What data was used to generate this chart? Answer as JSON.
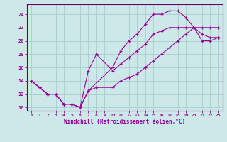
{
  "xlabel": "Windchill (Refroidissement éolien,°C)",
  "bg_color": "#cce8e8",
  "grid_color": "#aacccc",
  "line_color": "#990099",
  "spine_color": "#660066",
  "xlim": [
    -0.5,
    23.5
  ],
  "ylim": [
    9.5,
    25.5
  ],
  "xticks": [
    0,
    1,
    2,
    3,
    4,
    5,
    6,
    7,
    8,
    9,
    10,
    11,
    12,
    13,
    14,
    15,
    16,
    17,
    18,
    19,
    20,
    21,
    22,
    23
  ],
  "yticks": [
    10,
    12,
    14,
    16,
    18,
    20,
    22,
    24
  ],
  "series": [
    {
      "x": [
        0,
        1,
        2,
        3,
        4,
        5,
        6,
        7,
        10,
        11,
        12,
        13,
        14,
        15,
        16,
        17,
        18,
        19,
        20,
        21,
        22,
        23
      ],
      "y": [
        14,
        13,
        12,
        12,
        10.5,
        10.5,
        10,
        12.5,
        16,
        18.5,
        20,
        21,
        22.5,
        24,
        24,
        24.5,
        24.5,
        23.5,
        22,
        20,
        20,
        20.5
      ]
    },
    {
      "x": [
        0,
        1,
        2,
        3,
        4,
        5,
        6,
        7,
        8,
        10,
        11,
        12,
        13,
        14,
        15,
        16,
        17,
        18,
        19,
        20,
        21,
        22,
        23
      ],
      "y": [
        14,
        13,
        12,
        12,
        10.5,
        10.5,
        10,
        15.5,
        18,
        15.5,
        16.5,
        17.5,
        18.5,
        19.5,
        21,
        21.5,
        22,
        22,
        22,
        22,
        21,
        20.5,
        20.5
      ]
    },
    {
      "x": [
        0,
        1,
        2,
        3,
        4,
        5,
        6,
        7,
        8,
        10,
        11,
        12,
        13,
        14,
        15,
        16,
        17,
        18,
        19,
        20,
        21,
        22,
        23
      ],
      "y": [
        14,
        13,
        12,
        12,
        10.5,
        10.5,
        10,
        12.5,
        13,
        13,
        14,
        14.5,
        15,
        16,
        17,
        18,
        19,
        20,
        21,
        22,
        22,
        22,
        22
      ]
    }
  ]
}
